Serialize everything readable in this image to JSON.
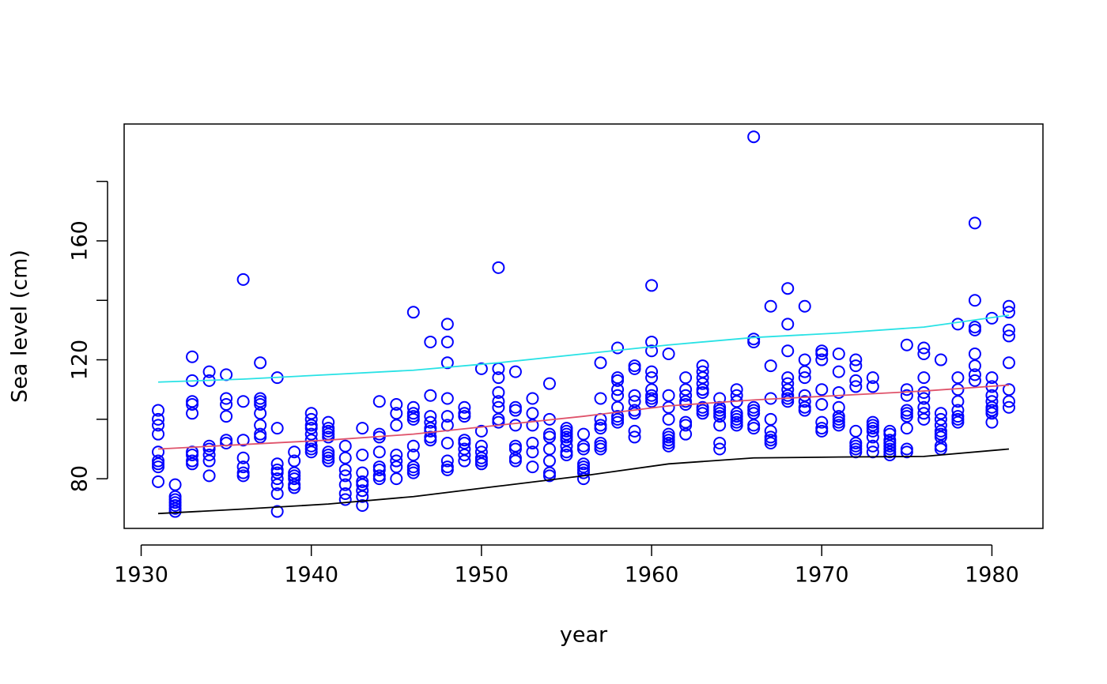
{
  "chart_data": {
    "type": "scatter",
    "x_label": "year",
    "y_label": "Sea level (cm)",
    "xlim": [
      1929,
      1983
    ],
    "ylim": [
      63.3,
      199.3
    ],
    "xticks": [
      1930,
      1940,
      1950,
      1960,
      1970,
      1980
    ],
    "yticks": [
      80,
      {
        "value": 100,
        "label": null
      },
      120,
      {
        "value": 140,
        "label": null
      },
      160,
      {
        "value": 180,
        "label": null
      }
    ],
    "point_color": "#0000ff",
    "groups": [
      {
        "x": 1931,
        "values": [
          103,
          100,
          98,
          95,
          89,
          86,
          85,
          84,
          79
        ]
      },
      {
        "x": 1932,
        "values": [
          78,
          74,
          73,
          72,
          71,
          70,
          69
        ]
      },
      {
        "x": 1933,
        "values": [
          121,
          113,
          106,
          105,
          102,
          89,
          88,
          86,
          85
        ]
      },
      {
        "x": 1934,
        "values": [
          116,
          113,
          91,
          90,
          88,
          86,
          81
        ]
      },
      {
        "x": 1935,
        "values": [
          115,
          107,
          105,
          101,
          93,
          92
        ]
      },
      {
        "x": 1936,
        "values": [
          147,
          106,
          93,
          87,
          84,
          82,
          81
        ]
      },
      {
        "x": 1937,
        "values": [
          119,
          107,
          106,
          105,
          102,
          98,
          95,
          94
        ]
      },
      {
        "x": 1938,
        "values": [
          114,
          97,
          85,
          83,
          82,
          80,
          78,
          75,
          69
        ]
      },
      {
        "x": 1939,
        "values": [
          89,
          86,
          82,
          81,
          80,
          78,
          77
        ]
      },
      {
        "x": 1940,
        "values": [
          102,
          100,
          98,
          97,
          95,
          93,
          91,
          90,
          89
        ]
      },
      {
        "x": 1941,
        "values": [
          99,
          97,
          96,
          95,
          94,
          89,
          88,
          87,
          86
        ]
      },
      {
        "x": 1942,
        "values": [
          91,
          87,
          83,
          81,
          78,
          75,
          73
        ]
      },
      {
        "x": 1943,
        "values": [
          97,
          88,
          82,
          79,
          78,
          76,
          74,
          71
        ]
      },
      {
        "x": 1944,
        "values": [
          106,
          95,
          94,
          89,
          84,
          83,
          81,
          80
        ]
      },
      {
        "x": 1945,
        "values": [
          105,
          102,
          98,
          88,
          86,
          84,
          80
        ]
      },
      {
        "x": 1946,
        "values": [
          136,
          104,
          102,
          101,
          100,
          91,
          88,
          84,
          83,
          82
        ]
      },
      {
        "x": 1947,
        "values": [
          126,
          108,
          101,
          99,
          97,
          96,
          94,
          93
        ]
      },
      {
        "x": 1948,
        "values": [
          132,
          126,
          119,
          107,
          101,
          98,
          92,
          86,
          84,
          83
        ]
      },
      {
        "x": 1949,
        "values": [
          104,
          102,
          101,
          93,
          92,
          90,
          88,
          86
        ]
      },
      {
        "x": 1950,
        "values": [
          117,
          96,
          91,
          89,
          87,
          86,
          85
        ]
      },
      {
        "x": 1951,
        "values": [
          151,
          117,
          114,
          109,
          106,
          104,
          100,
          99
        ]
      },
      {
        "x": 1952,
        "values": [
          116,
          104,
          103,
          98,
          91,
          90,
          87,
          86
        ]
      },
      {
        "x": 1953,
        "values": [
          107,
          102,
          98,
          92,
          89,
          84
        ]
      },
      {
        "x": 1954,
        "values": [
          112,
          100,
          95,
          94,
          90,
          86,
          82,
          81
        ]
      },
      {
        "x": 1955,
        "values": [
          97,
          96,
          95,
          94,
          93,
          91,
          89,
          88
        ]
      },
      {
        "x": 1956,
        "values": [
          95,
          91,
          90,
          85,
          84,
          83,
          82,
          80
        ]
      },
      {
        "x": 1957,
        "values": [
          119,
          107,
          100,
          98,
          97,
          92,
          91,
          90
        ]
      },
      {
        "x": 1958,
        "values": [
          124,
          114,
          113,
          110,
          108,
          104,
          101,
          100,
          99
        ]
      },
      {
        "x": 1959,
        "values": [
          118,
          117,
          108,
          106,
          103,
          102,
          96,
          94
        ]
      },
      {
        "x": 1960,
        "values": [
          145,
          126,
          123,
          116,
          114,
          110,
          108,
          107,
          106
        ]
      },
      {
        "x": 1961,
        "values": [
          122,
          108,
          104,
          100,
          95,
          94,
          93,
          92,
          91
        ]
      },
      {
        "x": 1962,
        "values": [
          114,
          110,
          108,
          106,
          105,
          99,
          98,
          95
        ]
      },
      {
        "x": 1963,
        "values": [
          118,
          116,
          114,
          112,
          110,
          109,
          104,
          103,
          102
        ]
      },
      {
        "x": 1964,
        "values": [
          107,
          104,
          103,
          102,
          101,
          98,
          92,
          90
        ]
      },
      {
        "x": 1965,
        "values": [
          110,
          108,
          106,
          102,
          101,
          100,
          99,
          98
        ]
      },
      {
        "x": 1966,
        "values": [
          195,
          127,
          126,
          104,
          103,
          102,
          98,
          97
        ]
      },
      {
        "x": 1967,
        "values": [
          138,
          118,
          107,
          100,
          96,
          94,
          93,
          92
        ]
      },
      {
        "x": 1968,
        "values": [
          144,
          132,
          123,
          114,
          112,
          110,
          108,
          107,
          106
        ]
      },
      {
        "x": 1969,
        "values": [
          138,
          120,
          116,
          114,
          108,
          106,
          104,
          103
        ]
      },
      {
        "x": 1970,
        "values": [
          123,
          122,
          120,
          110,
          105,
          99,
          97,
          96
        ]
      },
      {
        "x": 1971,
        "values": [
          122,
          116,
          109,
          104,
          101,
          100,
          99,
          98
        ]
      },
      {
        "x": 1972,
        "values": [
          120,
          118,
          113,
          111,
          96,
          92,
          91,
          90,
          89
        ]
      },
      {
        "x": 1973,
        "values": [
          114,
          111,
          99,
          98,
          97,
          96,
          94,
          91,
          89
        ]
      },
      {
        "x": 1974,
        "values": [
          96,
          95,
          93,
          92,
          91,
          90,
          89,
          88
        ]
      },
      {
        "x": 1975,
        "values": [
          125,
          110,
          108,
          103,
          102,
          101,
          97,
          90,
          89
        ]
      },
      {
        "x": 1976,
        "values": [
          124,
          122,
          114,
          109,
          107,
          104,
          102,
          100
        ]
      },
      {
        "x": 1977,
        "values": [
          120,
          102,
          100,
          98,
          96,
          95,
          94,
          91,
          90
        ]
      },
      {
        "x": 1978,
        "values": [
          132,
          114,
          110,
          106,
          103,
          101,
          100,
          99
        ]
      },
      {
        "x": 1979,
        "values": [
          166,
          140,
          131,
          130,
          122,
          118,
          115,
          113
        ]
      },
      {
        "x": 1980,
        "values": [
          134,
          114,
          111,
          108,
          106,
          104,
          103,
          102,
          99
        ]
      },
      {
        "x": 1981,
        "values": [
          138,
          136,
          130,
          128,
          119,
          110,
          106,
          104
        ]
      }
    ],
    "lines": [
      {
        "color": "#000000",
        "x": [
          1931,
          1936,
          1941,
          1946,
          1951,
          1956,
          1961,
          1966,
          1971,
          1976,
          1981
        ],
        "values": [
          68.3,
          69.8,
          71.5,
          74,
          77.5,
          81,
          85,
          87,
          87.3,
          87.5,
          90
        ]
      },
      {
        "color": "#df536b",
        "x": [
          1931,
          1936,
          1941,
          1946,
          1951,
          1956,
          1961,
          1966,
          1971,
          1976,
          1981
        ],
        "values": [
          90,
          91.5,
          93,
          95,
          98,
          101,
          104.5,
          106.5,
          108,
          109.5,
          111.5
        ]
      },
      {
        "color": "#28e2e5",
        "x": [
          1931,
          1936,
          1941,
          1946,
          1951,
          1956,
          1961,
          1966,
          1971,
          1976,
          1981
        ],
        "values": [
          112.5,
          113.5,
          115,
          116.5,
          119,
          122,
          125,
          127.5,
          129,
          131,
          135
        ]
      }
    ]
  }
}
